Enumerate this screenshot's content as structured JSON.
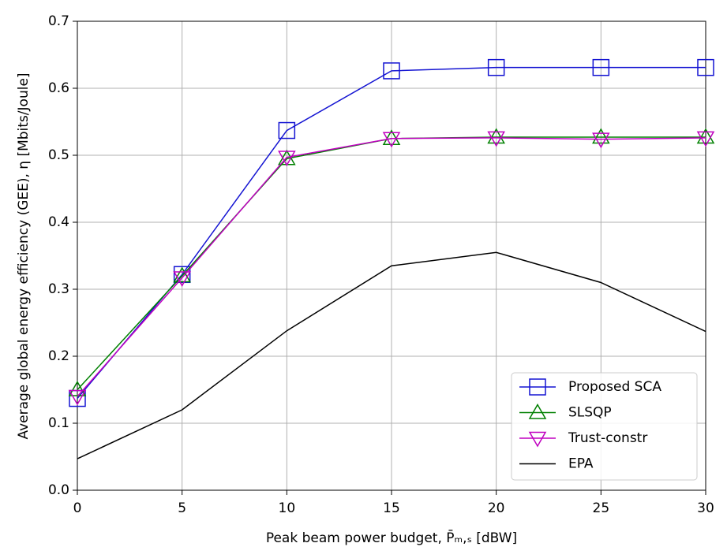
{
  "chart_data": {
    "type": "line",
    "x_label": "Peak beam power budget, P̄ₘ,ₛ [dBW]",
    "y_label": "Average global energy efficiency (GEE), η [Mbits/Joule]",
    "x": [
      0,
      5,
      10,
      15,
      20,
      25,
      30
    ],
    "series": [
      {
        "name": "Proposed SCA",
        "color": "#1414d2",
        "marker": "square",
        "values": [
          0.137,
          0.322,
          0.537,
          0.626,
          0.631,
          0.631,
          0.631
        ]
      },
      {
        "name": "SLSQP",
        "color": "#008000",
        "marker": "triangle-up",
        "values": [
          0.15,
          0.32,
          0.495,
          0.525,
          0.527,
          0.527,
          0.527
        ]
      },
      {
        "name": "Trust-constr",
        "color": "#c000c0",
        "marker": "triangle-down",
        "values": [
          0.14,
          0.317,
          0.497,
          0.525,
          0.526,
          0.524,
          0.526
        ]
      },
      {
        "name": "EPA",
        "color": "#000000",
        "marker": "none",
        "values": [
          0.047,
          0.12,
          0.238,
          0.335,
          0.355,
          0.31,
          0.237
        ]
      }
    ],
    "xlim": [
      0,
      30
    ],
    "ylim": [
      0,
      0.7
    ],
    "xticks": [
      0,
      5,
      10,
      15,
      20,
      25,
      30
    ],
    "yticks": [
      {
        "value": 0,
        "label": "0.0"
      },
      0.1,
      0.2,
      0.3,
      0.4,
      0.5,
      0.6,
      0.7
    ],
    "grid": true,
    "legend": "lower right"
  }
}
